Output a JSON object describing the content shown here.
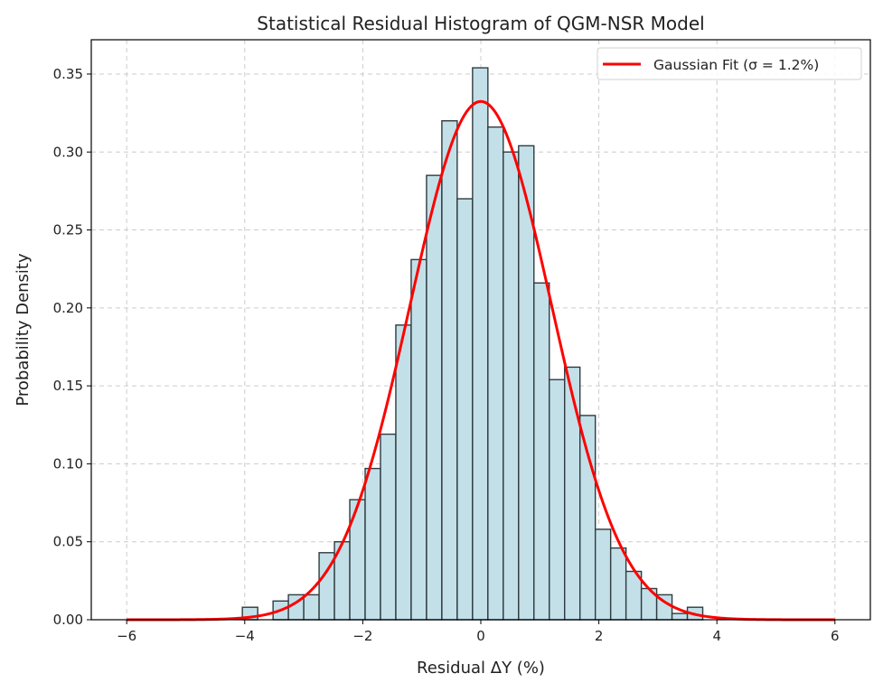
{
  "chart_data": {
    "type": "bar",
    "title": "Statistical Residual Histogram of QGM-NSR Model",
    "xlabel": "Residual ΔY (%)",
    "ylabel": "Probability Density",
    "xlim": [
      -6.6,
      6.6
    ],
    "ylim": [
      0,
      0.372
    ],
    "xticks": [
      -6,
      -4,
      -2,
      0,
      2,
      4,
      6
    ],
    "xtick_labels": [
      "−6",
      "−4",
      "−2",
      "0",
      "2",
      "4",
      "6"
    ],
    "yticks": [
      0,
      0.05,
      0.1,
      0.15,
      0.2,
      0.25,
      0.3,
      0.35
    ],
    "ytick_labels": [
      "0.00",
      "0.05",
      "0.10",
      "0.15",
      "0.20",
      "0.25",
      "0.30",
      "0.35"
    ],
    "grid": true,
    "bins": {
      "start": -4.04,
      "width": 0.26,
      "values": [
        0.008,
        0.0,
        0.012,
        0.016,
        0.016,
        0.043,
        0.05,
        0.077,
        0.097,
        0.119,
        0.189,
        0.231,
        0.285,
        0.32,
        0.27,
        0.354,
        0.316,
        0.3,
        0.304,
        0.216,
        0.154,
        0.162,
        0.131,
        0.058,
        0.046,
        0.031,
        0.02,
        0.016,
        0.004,
        0.008
      ]
    },
    "fit": {
      "name": "Gaussian Fit (σ = 1.2%)",
      "mean": 0,
      "sigma": 1.2,
      "x_range": [
        -6,
        6
      ]
    },
    "legend": {
      "entries": [
        "Gaussian Fit (σ = 1.2%)"
      ],
      "placement": "top-right"
    },
    "colors": {
      "bar_fill": "#c3e0e9",
      "bar_edge": "#2f3b3f",
      "fit_line": "#ff0000",
      "grid": "#cccccc"
    }
  }
}
